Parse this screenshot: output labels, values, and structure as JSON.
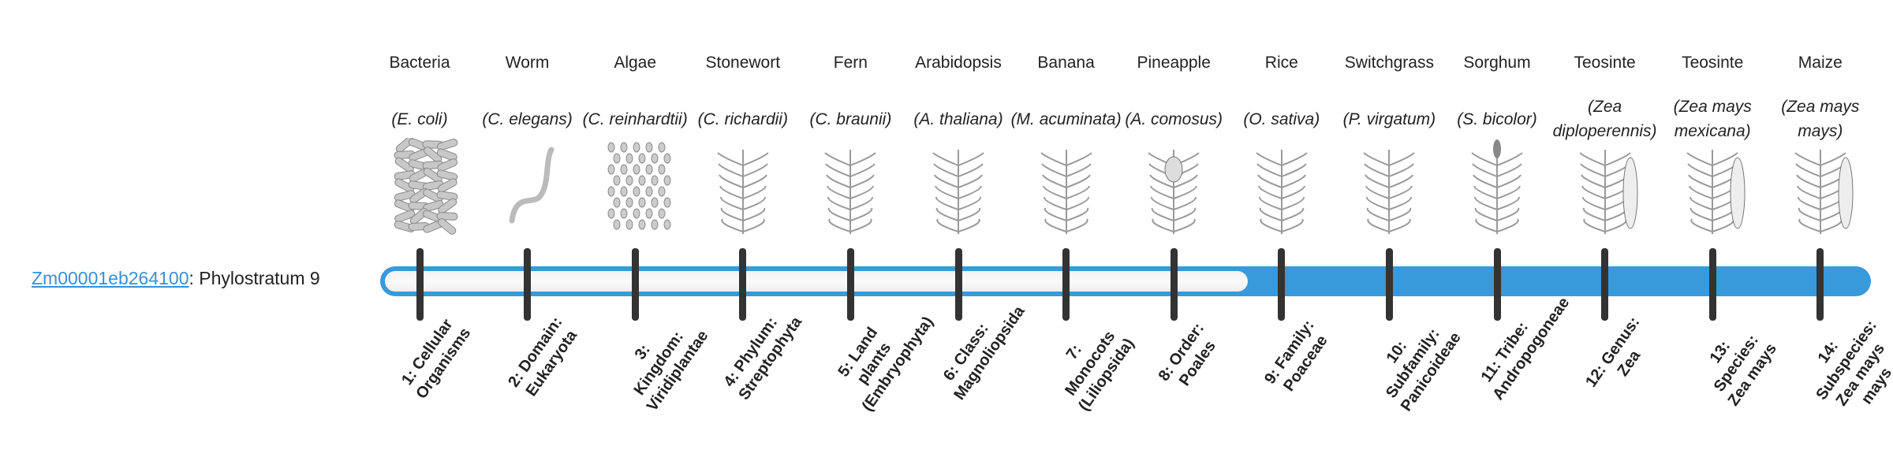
{
  "gene": {
    "id": "Zm00001eb264100",
    "suffix": ": Phylostratum 9",
    "phylostratum": 9,
    "total_strata": 14
  },
  "colors": {
    "accent": "#3899db",
    "tick": "#333333",
    "link": "#3a8fd6"
  },
  "columns": [
    {
      "common": "Bacteria",
      "scientific": "(E. coli)",
      "icon": "bacteria-icon",
      "stratum": "1: Cellular Organisms"
    },
    {
      "common": "Worm",
      "scientific": "(C. elegans)",
      "icon": "worm-icon",
      "stratum": "2: Domain: Eukaryota"
    },
    {
      "common": "Algae",
      "scientific": "(C. reinhardtii)",
      "icon": "algae-icon",
      "stratum": "3: Kingdom: Viridiplantae"
    },
    {
      "common": "Stonewort",
      "scientific": "(C. richardii)",
      "icon": "stonewort-icon",
      "stratum": "4: Phylum: Streptophyta"
    },
    {
      "common": "Fern",
      "scientific": "(C. braunii)",
      "icon": "fern-icon",
      "stratum": "5: Land plants (Embryophyta)"
    },
    {
      "common": "Arabidopsis",
      "scientific": "(A. thaliana)",
      "icon": "arabidopsis-icon",
      "stratum": "6: Class: Magnoliopsida"
    },
    {
      "common": "Banana",
      "scientific": "(M. acuminata)",
      "icon": "banana-icon",
      "stratum": "7: Monocots (Liliopsida)"
    },
    {
      "common": "Pineapple",
      "scientific": "(A. comosus)",
      "icon": "pineapple-icon",
      "stratum": "8: Order: Poales"
    },
    {
      "common": "Rice",
      "scientific": "(O. sativa)",
      "icon": "rice-icon",
      "stratum": "9: Family: Poaceae"
    },
    {
      "common": "Switchgrass",
      "scientific": "(P. virgatum)",
      "icon": "switchgrass-icon",
      "stratum": "10: Subfamily: Panicoideae"
    },
    {
      "common": "Sorghum",
      "scientific": "(S. bicolor)",
      "icon": "sorghum-icon",
      "stratum": "11: Tribe: Andropogoneae"
    },
    {
      "common": "Teosinte",
      "scientific": "(Zea diploperennis)",
      "icon": "teosinte-icon",
      "stratum": "12: Genus: Zea"
    },
    {
      "common": "Teosinte",
      "scientific": "(Zea mays mexicana)",
      "icon": "teosinte-icon",
      "stratum": "13: Species: Zea mays"
    },
    {
      "common": "Maize",
      "scientific": "(Zea mays mays)",
      "icon": "maize-icon",
      "stratum": "14: Subspecies: Zea mays mays"
    }
  ]
}
